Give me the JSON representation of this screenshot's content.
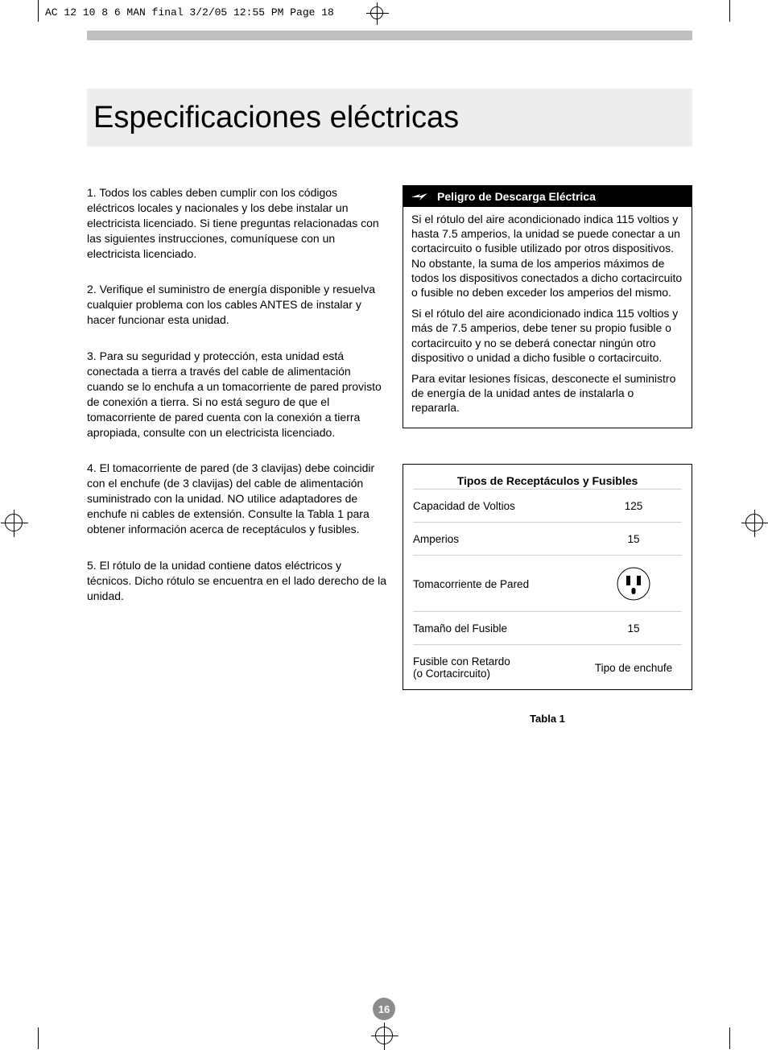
{
  "crop_header": "AC 12 10 8 6 MAN final  3/2/05  12:55 PM  Page 18",
  "title": "Especificaciones eléctricas",
  "page_number": "16",
  "left_paragraphs": [
    "1. Todos los cables deben cumplir con los códigos eléctricos locales y nacionales y los debe instalar un electricista licenciado. Si tiene preguntas relacionadas con las siguientes instrucciones, comuníquese con un electricista  licenciado.",
    "2. Verifique el suministro de energía disponible y resuelva cualquier problema con los cables ANTES de instalar y hacer funcionar esta unidad.",
    "3. Para su seguridad y protección, esta unidad está conectada a tierra a través del cable de alimentación cuando se lo enchufa a un tomacorriente de pared provisto de conexión a tierra. Si no está seguro de que el tomacorriente de pared cuenta con la conexión a tierra apropiada, consulte con un electricista licenciado.",
    "4. El tomacorriente de pared (de 3 clavijas) debe coincidir con el enchufe (de 3 clavijas) del cable de alimentación suministrado con la unidad. NO utilice adaptadores de enchufe ni cables de extensión. Consulte la Tabla 1 para obtener información acerca de receptáculos y fusibles.",
    "5. El rótulo de la unidad contiene datos eléctricos y técnicos. Dicho rótulo se encuentra en el lado derecho de la unidad."
  ],
  "warning": {
    "title": "Peligro de Descarga Eléctrica",
    "paragraphs": [
      "Si el rótulo del aire acondicionado indica 115 voltios y hasta 7.5 amperios, la unidad se puede conectar a un cortacircuito o fusible utilizado por otros dispositivos. No obstante, la suma de los amperios máximos de todos los dispositivos conectados a dicho cortacircuito o fusible no deben exceder los amperios del mismo.",
      "Si el rótulo del aire acondicionado indica 115 voltios y más de 7.5 amperios, debe tener su propio fusible o cortacircuito y no se deberá conectar ningún otro dispositivo o unidad a dicho fusible o cortacircuito.",
      "Para evitar lesiones físicas, desconecte el suministro de energía de la unidad antes de instalarla o repararla."
    ]
  },
  "table": {
    "title": "Tipos de Receptáculos y Fusibles",
    "rows": [
      {
        "label": "Capacidad de Voltios",
        "value": "125",
        "type": "text"
      },
      {
        "label": "Amperios",
        "value": "15",
        "type": "text"
      },
      {
        "label": "Tomacorriente de Pared",
        "value": "",
        "type": "outlet"
      },
      {
        "label": "Tamaño del Fusible",
        "value": "15",
        "type": "text"
      },
      {
        "label": "Fusible con Retardo\n(o Cortacircuito)",
        "value": "Tipo de enchufe",
        "type": "text"
      }
    ],
    "caption": "Tabla 1"
  },
  "colors": {
    "greybar": "#bfbfbf",
    "title_bg": "#ededed",
    "page_num_bg": "#8c8c8c"
  }
}
